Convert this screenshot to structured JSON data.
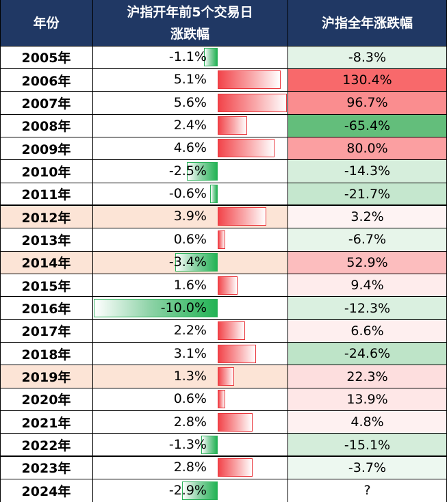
{
  "chart_data": {
    "type": "table",
    "headers": {
      "year": "年份",
      "first5": "沪指开年前5个交易日\n涨跌幅",
      "full": "沪指全年涨跌幅"
    },
    "rows": [
      {
        "year": "2005年",
        "first5": -1.1,
        "first5_label": "-1.1%",
        "full": -8.3,
        "full_label": "-8.3%"
      },
      {
        "year": "2006年",
        "first5": 5.1,
        "first5_label": "5.1%",
        "full": 130.4,
        "full_label": "130.4%"
      },
      {
        "year": "2007年",
        "first5": 5.6,
        "first5_label": "5.6%",
        "full": 96.7,
        "full_label": "96.7%"
      },
      {
        "year": "2008年",
        "first5": 2.4,
        "first5_label": "2.4%",
        "full": -65.4,
        "full_label": "-65.4%"
      },
      {
        "year": "2009年",
        "first5": 4.6,
        "first5_label": "4.6%",
        "full": 80.0,
        "full_label": "80.0%"
      },
      {
        "year": "2010年",
        "first5": -2.5,
        "first5_label": "-2.5%",
        "full": -14.3,
        "full_label": "-14.3%"
      },
      {
        "year": "2011年",
        "first5": -0.6,
        "first5_label": "-0.6%",
        "full": -21.7,
        "full_label": "-21.7%"
      },
      {
        "year": "2012年",
        "first5": 3.9,
        "first5_label": "3.9%",
        "full": 3.2,
        "full_label": "3.2%",
        "highlight": true
      },
      {
        "year": "2013年",
        "first5": 0.6,
        "first5_label": "0.6%",
        "full": -6.7,
        "full_label": "-6.7%"
      },
      {
        "year": "2014年",
        "first5": -3.4,
        "first5_label": "-3.4%",
        "full": 52.9,
        "full_label": "52.9%",
        "highlight": true
      },
      {
        "year": "2015年",
        "first5": 1.6,
        "first5_label": "1.6%",
        "full": 9.4,
        "full_label": "9.4%"
      },
      {
        "year": "2016年",
        "first5": -10.0,
        "first5_label": "-10.0%",
        "full": -12.3,
        "full_label": "-12.3%"
      },
      {
        "year": "2017年",
        "first5": 2.2,
        "first5_label": "2.2%",
        "full": 6.6,
        "full_label": "6.6%"
      },
      {
        "year": "2018年",
        "first5": 3.1,
        "first5_label": "3.1%",
        "full": -24.6,
        "full_label": "-24.6%"
      },
      {
        "year": "2019年",
        "first5": 1.3,
        "first5_label": "1.3%",
        "full": 22.3,
        "full_label": "22.3%",
        "highlight": true
      },
      {
        "year": "2020年",
        "first5": 0.6,
        "first5_label": "0.6%",
        "full": 13.9,
        "full_label": "13.9%"
      },
      {
        "year": "2021年",
        "first5": 2.8,
        "first5_label": "2.8%",
        "full": 4.8,
        "full_label": "4.8%"
      },
      {
        "year": "2022年",
        "first5": -1.3,
        "first5_label": "-1.3%",
        "full": -15.1,
        "full_label": "-15.1%"
      },
      {
        "year": "2023年",
        "first5": 2.8,
        "first5_label": "2.8%",
        "full": -3.7,
        "full_label": "-3.7%"
      },
      {
        "year": "2024年",
        "first5": -2.9,
        "first5_label": "-2.9%",
        "full": null,
        "full_label": "?"
      }
    ],
    "colors": {
      "header_bg": "#203864",
      "header_text": "#ffffff",
      "row_highlight": "#fce4d6",
      "bar_positive": "#f2444a",
      "bar_negative": "#22b354",
      "scale_positive": "#f8696b",
      "scale_negative": "#63be7b"
    }
  }
}
